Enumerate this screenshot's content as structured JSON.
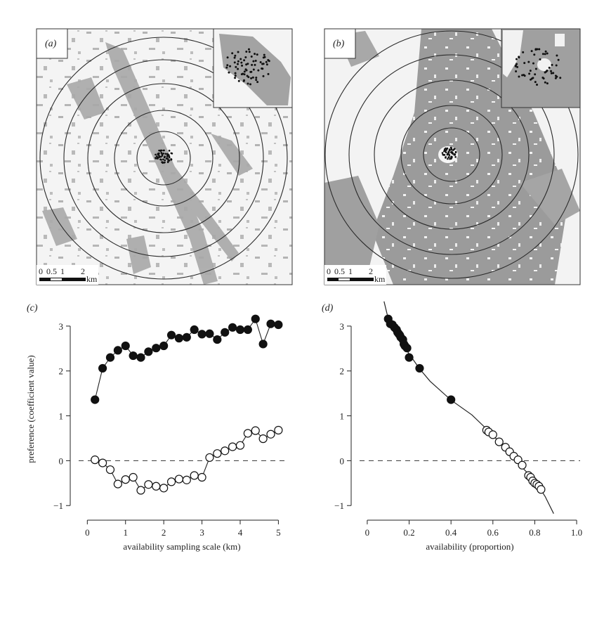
{
  "panels": {
    "a": {
      "label": "(a)",
      "scalebar": {
        "ticks": [
          "0",
          "0.5",
          "1",
          "2"
        ],
        "unit": "km"
      }
    },
    "b": {
      "label": "(b)",
      "scalebar": {
        "ticks": [
          "0",
          "0.5",
          "1",
          "2"
        ],
        "unit": "km"
      }
    }
  },
  "chart_data": [
    {
      "panel": "(c)",
      "type": "scatter",
      "xlabel": "availability sampling scale (km)",
      "ylabel": "preference (coefficient value)",
      "xlim": [
        -0.3,
        5.25
      ],
      "ylim": [
        -1.2,
        3.5
      ],
      "xticks": [
        0,
        1,
        2,
        3,
        4,
        5
      ],
      "yticks": [
        -1,
        0,
        1,
        2,
        3
      ],
      "reference_line": {
        "y": 0,
        "style": "dashed"
      },
      "series": [
        {
          "marker": "filled-circle",
          "x": [
            0.2,
            0.4,
            0.6,
            0.8,
            1.0,
            1.2,
            1.4,
            1.6,
            1.8,
            2.0,
            2.2,
            2.4,
            2.6,
            2.8,
            3.0,
            3.2,
            3.4,
            3.6,
            3.8,
            4.0,
            4.2,
            4.4,
            4.6,
            4.8,
            5.0
          ],
          "y": [
            1.36,
            2.06,
            2.3,
            2.46,
            2.56,
            2.34,
            2.3,
            2.43,
            2.51,
            2.56,
            2.8,
            2.73,
            2.75,
            2.92,
            2.82,
            2.83,
            2.7,
            2.86,
            2.97,
            2.92,
            2.92,
            3.16,
            2.6,
            3.05,
            3.03
          ]
        },
        {
          "marker": "open-circle",
          "x": [
            0.2,
            0.4,
            0.6,
            0.8,
            1.0,
            1.2,
            1.4,
            1.6,
            1.8,
            2.0,
            2.2,
            2.4,
            2.6,
            2.8,
            3.0,
            3.2,
            3.4,
            3.6,
            3.8,
            4.0,
            4.2,
            4.4,
            4.6,
            4.8,
            5.0
          ],
          "y": [
            0.02,
            -0.05,
            -0.2,
            -0.52,
            -0.42,
            -0.37,
            -0.66,
            -0.53,
            -0.57,
            -0.61,
            -0.47,
            -0.41,
            -0.43,
            -0.33,
            -0.37,
            0.07,
            0.16,
            0.22,
            0.31,
            0.34,
            0.61,
            0.67,
            0.49,
            0.59,
            0.68
          ]
        }
      ]
    },
    {
      "panel": "(d)",
      "type": "scatter",
      "xlabel": "availability (proportion)",
      "xlim": [
        -0.05,
        1.03
      ],
      "ylim": [
        -1.2,
        3.5
      ],
      "xticks": [
        0,
        0.2,
        0.4,
        0.6,
        0.8,
        1.0
      ],
      "xtick_labels": [
        "0",
        "0.2",
        "0.4",
        "0.6",
        "0.8",
        "1.0"
      ],
      "yticks": [
        -1,
        0,
        1,
        2,
        3
      ],
      "reference_line": {
        "y": 0,
        "style": "dashed"
      },
      "fit_curve": {
        "x": [
          0.08,
          0.1,
          0.12,
          0.15,
          0.2,
          0.25,
          0.3,
          0.4,
          0.5,
          0.6,
          0.7,
          0.75,
          0.8,
          0.85,
          0.89
        ],
        "y": [
          3.55,
          3.17,
          2.95,
          2.73,
          2.38,
          2.05,
          1.77,
          1.35,
          1.02,
          0.57,
          0.05,
          -0.2,
          -0.43,
          -0.8,
          -1.18
        ]
      },
      "series": [
        {
          "marker": "filled-circle",
          "x": [
            0.1,
            0.11,
            0.12,
            0.13,
            0.14,
            0.145,
            0.15,
            0.155,
            0.16,
            0.17,
            0.175,
            0.18,
            0.19,
            0.2,
            0.25,
            0.4
          ],
          "y": [
            3.16,
            3.05,
            3.03,
            2.97,
            2.92,
            2.86,
            2.83,
            2.8,
            2.75,
            2.7,
            2.6,
            2.56,
            2.51,
            2.3,
            2.06,
            1.36
          ]
        },
        {
          "marker": "open-circle",
          "x": [
            0.57,
            0.58,
            0.6,
            0.63,
            0.66,
            0.68,
            0.7,
            0.72,
            0.74,
            0.77,
            0.78,
            0.79,
            0.8,
            0.81,
            0.82,
            0.83
          ],
          "y": [
            0.68,
            0.64,
            0.58,
            0.42,
            0.3,
            0.2,
            0.1,
            0.02,
            -0.1,
            -0.33,
            -0.37,
            -0.45,
            -0.5,
            -0.53,
            -0.57,
            -0.64
          ]
        }
      ]
    }
  ]
}
